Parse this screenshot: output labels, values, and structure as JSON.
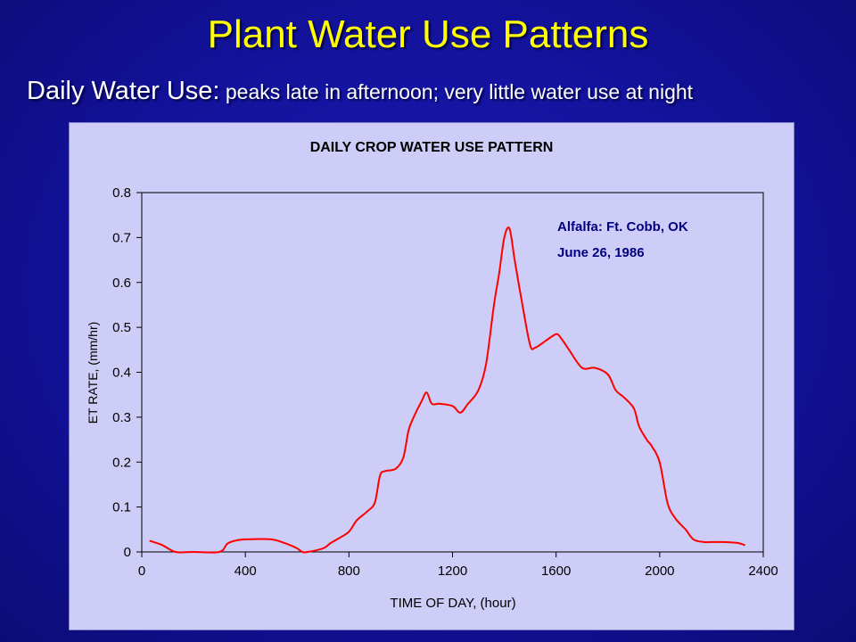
{
  "slide": {
    "title": "Plant Water Use Patterns",
    "subtitle_lead": "Daily Water Use:",
    "subtitle_rest": " peaks late in afternoon; very little water use at night"
  },
  "chart_data": {
    "type": "line",
    "title": "DAILY CROP WATER USE PATTERN",
    "xlabel": "TIME OF DAY, (hour)",
    "ylabel": "ET RATE, (mm/hr)",
    "xlim": [
      0,
      2400
    ],
    "ylim": [
      0,
      0.8
    ],
    "xticks": [
      0,
      400,
      800,
      1200,
      1600,
      2000,
      2400
    ],
    "yticks": [
      0,
      0.1,
      0.2,
      0.3,
      0.4,
      0.5,
      0.6,
      0.7,
      0.8
    ],
    "ytick_labels": [
      "0",
      "0.1",
      "0.2",
      "0.3",
      "0.4",
      "0.5",
      "0.6",
      "0.7",
      "0.8"
    ],
    "grid": false,
    "annotations": [
      "Alfalfa:  Ft. Cobb, OK",
      "June 26, 1986"
    ],
    "line_color": "#ff0000",
    "series": [
      {
        "x": [
          30,
          80,
          130,
          200,
          300,
          330,
          360,
          400,
          500,
          560,
          600,
          620,
          640,
          700,
          730,
          760,
          800,
          830,
          870,
          900,
          920,
          940,
          980,
          1010,
          1030,
          1050,
          1080,
          1100,
          1120,
          1150,
          1200,
          1230,
          1260,
          1300,
          1330,
          1360,
          1380,
          1400,
          1420,
          1440,
          1470,
          1500,
          1520,
          1560,
          1600,
          1620,
          1650,
          1700,
          1750,
          1800,
          1830,
          1860,
          1900,
          1920,
          1950,
          1970,
          2000,
          2030,
          2060,
          2100,
          2130,
          2170,
          2200,
          2250,
          2300,
          2330
        ],
        "y": [
          0.025,
          0.015,
          0.0,
          0.0,
          0.0,
          0.018,
          0.025,
          0.028,
          0.028,
          0.018,
          0.008,
          0.0,
          0.0,
          0.008,
          0.02,
          0.03,
          0.045,
          0.07,
          0.09,
          0.11,
          0.17,
          0.18,
          0.185,
          0.21,
          0.27,
          0.3,
          0.335,
          0.355,
          0.33,
          0.33,
          0.325,
          0.31,
          0.33,
          0.36,
          0.42,
          0.55,
          0.62,
          0.7,
          0.72,
          0.65,
          0.55,
          0.46,
          0.455,
          0.47,
          0.485,
          0.475,
          0.45,
          0.41,
          0.41,
          0.395,
          0.36,
          0.345,
          0.32,
          0.28,
          0.25,
          0.235,
          0.2,
          0.11,
          0.075,
          0.05,
          0.028,
          0.022,
          0.022,
          0.022,
          0.02,
          0.015
        ]
      }
    ]
  }
}
